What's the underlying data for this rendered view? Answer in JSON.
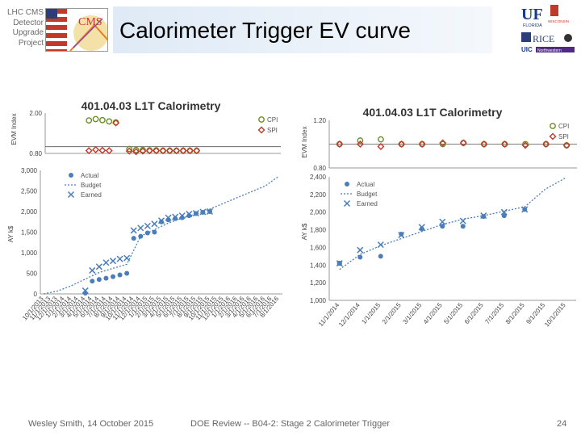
{
  "header": {
    "project_lines": [
      "LHC CMS",
      "Detector",
      "Upgrade",
      "Project"
    ],
    "title": "Calorimeter Trigger EV curve",
    "logo_cms": "CMS",
    "logo_uf": "UF",
    "logo_uf_sub": "FLORIDA",
    "logo_wisc": "WISCONSIN",
    "logo_rice": "RICE",
    "logo_uic": "UIC",
    "logo_nu": "Northwestern"
  },
  "footer": {
    "left": "Wesley Smith, 14 October 2015",
    "center": "DOE Review -- B04-2: Stage 2 Calorimeter Trigger",
    "page": "24"
  },
  "colors": {
    "cpi": "#6b8e23",
    "spi": "#c0392b",
    "actual": "#4a7ebb",
    "budget": "#4a7ebb",
    "earned": "#4a7ebb"
  },
  "chart_data": [
    {
      "type": "scatter",
      "title": "401.04.03 L1T Calorimetry",
      "ylabel": "EVM Index",
      "ylim": [
        0.8,
        2.0
      ],
      "yticks": [
        "2.00",
        "0.80"
      ],
      "x": [
        "10/1/2013",
        "11/1/2013",
        "12/1/2013",
        "1/1/2014",
        "2/1/2014",
        "3/1/2014",
        "4/1/2014",
        "5/1/2014",
        "6/1/2014",
        "7/1/2014",
        "8/1/2014",
        "9/1/2014",
        "10/1/2014",
        "11/1/2014",
        "12/1/2014",
        "1/1/2015",
        "2/1/2015",
        "3/1/2015",
        "4/1/2015",
        "5/1/2015",
        "6/1/2015",
        "7/1/2015",
        "8/1/2015",
        "9/1/2015",
        "10/1/2015",
        "11/1/2015",
        "12/1/2015",
        "1/1/2016",
        "2/1/2016",
        "3/1/2016",
        "4/1/2016",
        "5/1/2016",
        "6/1/2016",
        "7/1/2016",
        "8/1/2016"
      ],
      "series": [
        {
          "name": "CPI",
          "x_index": [
            6,
            7,
            8,
            9,
            10,
            11,
            12,
            13,
            14,
            15,
            16,
            17,
            18,
            19,
            20,
            21,
            22
          ],
          "values": [
            1.78,
            1.82,
            1.79,
            1.75,
            1.72,
            null,
            0.93,
            0.9,
            0.9,
            0.89,
            0.89,
            0.88,
            0.88,
            0.88,
            0.88,
            0.88,
            0.88
          ]
        },
        {
          "name": "SPI",
          "x_index": [
            6,
            7,
            8,
            9,
            10,
            11,
            12,
            13,
            14,
            15,
            16,
            17,
            18,
            19,
            20,
            21,
            22
          ],
          "values": [
            0.88,
            0.91,
            0.89,
            0.88,
            1.71,
            null,
            0.87,
            0.85,
            0.87,
            0.88,
            0.88,
            0.88,
            0.88,
            0.88,
            0.88,
            0.88,
            0.88
          ]
        }
      ]
    },
    {
      "type": "line",
      "ylabel": "AY k$",
      "ylim": [
        0,
        3000
      ],
      "yticks": [
        "3,000",
        "2,500",
        "2,000",
        "1,500",
        "1,000",
        "500",
        "0"
      ],
      "xticks": [
        "10/1/2013",
        "11/1/2013",
        "12/1/2013",
        "1/1/2014",
        "2/1/2014",
        "3/1/2014",
        "4/1/2014",
        "5/1/2014",
        "6/1/2014",
        "7/1/2014",
        "8/1/2014",
        "9/1/2014",
        "10/1/2014",
        "11/1/2014",
        "12/1/2014",
        "1/1/2015",
        "2/1/2015",
        "3/1/2015",
        "4/1/2015",
        "5/1/2015",
        "6/1/2015",
        "7/1/2015",
        "8/1/2015",
        "9/1/2015",
        "10/1/2015",
        "11/1/2015",
        "12/1/2015",
        "1/1/2016",
        "2/1/2016",
        "3/1/2016",
        "4/1/2016",
        "5/1/2016",
        "6/1/2016",
        "7/1/2016",
        "8/1/2016"
      ],
      "tick_every": 2,
      "series": [
        {
          "name": "Actual",
          "x_index": [
            6,
            7,
            8,
            9,
            10,
            11,
            12,
            13,
            14,
            15,
            16,
            17,
            18,
            19,
            20,
            21,
            22,
            23,
            24
          ],
          "values": [
            20,
            310,
            350,
            380,
            420,
            460,
            500,
            1350,
            1400,
            1480,
            1500,
            1750,
            1800,
            1830,
            1850,
            1900,
            1950,
            1980,
            2000
          ]
        },
        {
          "name": "Budget",
          "x_index": [
            0,
            2,
            4,
            6,
            8,
            10,
            12,
            14,
            16,
            18,
            20,
            22,
            24,
            26,
            28,
            30,
            32,
            34
          ],
          "values": [
            0,
            70,
            200,
            360,
            520,
            620,
            720,
            1400,
            1560,
            1720,
            1840,
            1940,
            2060,
            2200,
            2340,
            2480,
            2620,
            2860
          ]
        },
        {
          "name": "Earned",
          "x_index": [
            6,
            7,
            8,
            9,
            10,
            11,
            12,
            13,
            14,
            15,
            16,
            17,
            18,
            19,
            20,
            21,
            22,
            23,
            24
          ],
          "values": [
            80,
            570,
            660,
            760,
            800,
            850,
            870,
            1540,
            1600,
            1650,
            1700,
            1780,
            1850,
            1870,
            1900,
            1940,
            1960,
            1990,
            2000
          ]
        }
      ]
    },
    {
      "type": "scatter",
      "title": "401.04.03 L1T Calorimetry",
      "ylabel": "EVM Index",
      "ylim": [
        0.8,
        1.2
      ],
      "yticks": [
        "1.20",
        "0.80"
      ],
      "x": [
        "11/1/2014",
        "12/1/2014",
        "1/1/2015",
        "2/1/2015",
        "3/1/2015",
        "4/1/2015",
        "5/1/2015",
        "6/1/2015",
        "7/1/2015",
        "8/1/2015",
        "9/1/2015",
        "10/1/2015"
      ],
      "series": [
        {
          "name": "CPI",
          "values": [
            1.0,
            1.03,
            1.04,
            1.0,
            1.0,
            1.0,
            1.01,
            1.0,
            1.0,
            1.0,
            1.0,
            0.99
          ]
        },
        {
          "name": "SPI",
          "values": [
            1.0,
            1.0,
            0.98,
            1.0,
            1.0,
            1.01,
            1.01,
            1.0,
            1.0,
            0.99,
            1.0,
            0.99
          ]
        }
      ]
    },
    {
      "type": "line",
      "ylabel": "AY k$",
      "ylim": [
        1000,
        2400
      ],
      "yticks": [
        "2,400",
        "2,200",
        "2,000",
        "1,800",
        "1,600",
        "1,400",
        "1,200",
        "1,000"
      ],
      "xticks": [
        "11/1/2014",
        "12/1/2014",
        "1/1/2015",
        "2/1/2015",
        "3/1/2015",
        "4/1/2015",
        "5/1/2015",
        "6/1/2015",
        "7/1/2015",
        "8/1/2015",
        "9/1/2015",
        "10/1/2015"
      ],
      "series": [
        {
          "name": "Actual",
          "values": [
            1420,
            1490,
            1500,
            1750,
            1810,
            1840,
            1840,
            1950,
            1960,
            2030,
            null,
            null
          ]
        },
        {
          "name": "Budget",
          "values": [
            1350,
            1520,
            1620,
            1700,
            1780,
            1860,
            1920,
            1960,
            2010,
            2060,
            2260,
            2390
          ]
        },
        {
          "name": "Earned",
          "values": [
            1420,
            1570,
            1630,
            1740,
            1830,
            1890,
            1900,
            1960,
            2000,
            2030,
            null,
            null
          ]
        }
      ]
    }
  ]
}
